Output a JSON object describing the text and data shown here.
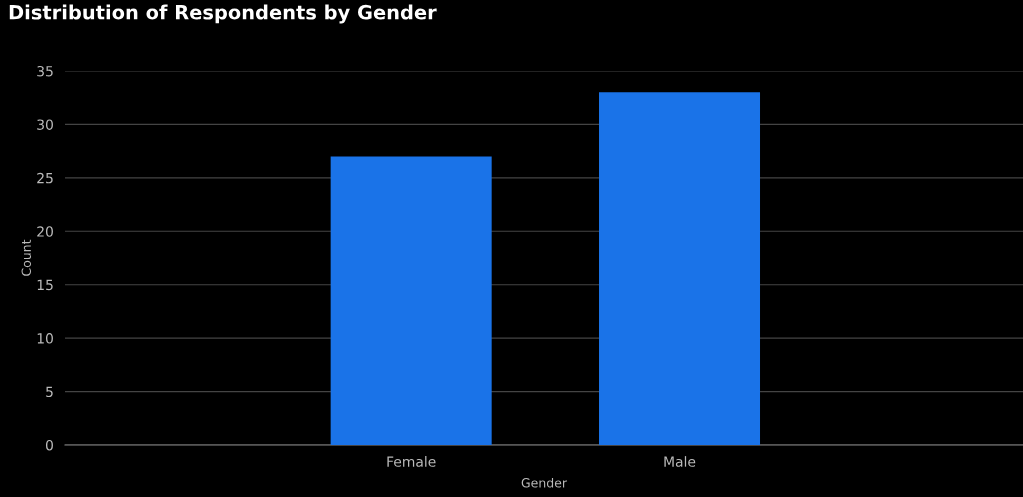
{
  "chart_data": {
    "type": "bar",
    "title": "Distribution of Respondents by Gender",
    "xlabel": "Gender",
    "ylabel": "Count",
    "categories": [
      "Female",
      "Male"
    ],
    "values": [
      27,
      33
    ],
    "color": "#1a73e8",
    "ylim": [
      0,
      35
    ],
    "yticks": [
      0,
      5,
      10,
      15,
      20,
      25,
      30,
      35
    ],
    "grid": "y",
    "legend": false
  }
}
